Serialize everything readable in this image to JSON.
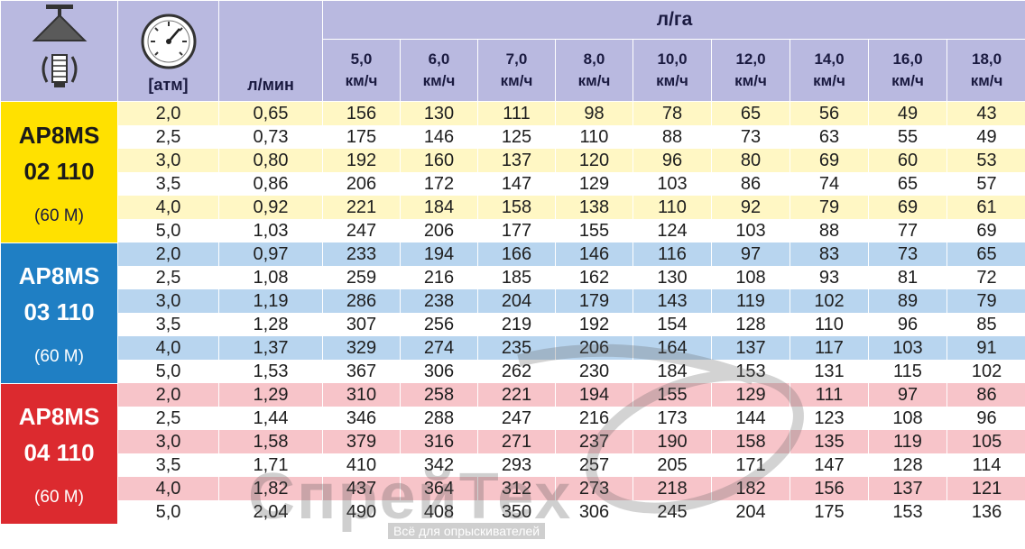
{
  "header": {
    "unit_top": "л/га",
    "pressure_label": "[атм]",
    "flow_label": "л/мин",
    "speeds": [
      {
        "value": "5,0",
        "unit": "км/ч"
      },
      {
        "value": "6,0",
        "unit": "км/ч"
      },
      {
        "value": "7,0",
        "unit": "км/ч"
      },
      {
        "value": "8,0",
        "unit": "км/ч"
      },
      {
        "value": "10,0",
        "unit": "км/ч"
      },
      {
        "value": "12,0",
        "unit": "км/ч"
      },
      {
        "value": "14,0",
        "unit": "км/ч"
      },
      {
        "value": "16,0",
        "unit": "км/ч"
      },
      {
        "value": "18,0",
        "unit": "км/ч"
      }
    ]
  },
  "groups": [
    {
      "model_line1": "AP8MS",
      "model_line2": "02 110",
      "model_sub": "(60 M)",
      "color": "#ffe100",
      "rows": [
        [
          "2,0",
          "0,65",
          "156",
          "130",
          "111",
          "98",
          "78",
          "65",
          "56",
          "49",
          "43"
        ],
        [
          "2,5",
          "0,73",
          "175",
          "146",
          "125",
          "110",
          "88",
          "73",
          "63",
          "55",
          "49"
        ],
        [
          "3,0",
          "0,80",
          "192",
          "160",
          "137",
          "120",
          "96",
          "80",
          "69",
          "60",
          "53"
        ],
        [
          "3,5",
          "0,86",
          "206",
          "172",
          "147",
          "129",
          "103",
          "86",
          "74",
          "65",
          "57"
        ],
        [
          "4,0",
          "0,92",
          "221",
          "184",
          "158",
          "138",
          "110",
          "92",
          "79",
          "69",
          "61"
        ],
        [
          "5,0",
          "1,03",
          "247",
          "206",
          "177",
          "155",
          "124",
          "103",
          "88",
          "77",
          "69"
        ]
      ]
    },
    {
      "model_line1": "AP8MS",
      "model_line2": "03 110",
      "model_sub": "(60 M)",
      "color": "#1f7fc4",
      "rows": [
        [
          "2,0",
          "0,97",
          "233",
          "194",
          "166",
          "146",
          "116",
          "97",
          "83",
          "73",
          "65"
        ],
        [
          "2,5",
          "1,08",
          "259",
          "216",
          "185",
          "162",
          "130",
          "108",
          "93",
          "81",
          "72"
        ],
        [
          "3,0",
          "1,19",
          "286",
          "238",
          "204",
          "179",
          "143",
          "119",
          "102",
          "89",
          "79"
        ],
        [
          "3,5",
          "1,28",
          "307",
          "256",
          "219",
          "192",
          "154",
          "128",
          "110",
          "96",
          "85"
        ],
        [
          "4,0",
          "1,37",
          "329",
          "274",
          "235",
          "206",
          "164",
          "137",
          "117",
          "103",
          "91"
        ],
        [
          "5,0",
          "1,53",
          "367",
          "306",
          "262",
          "230",
          "184",
          "153",
          "131",
          "115",
          "102"
        ]
      ]
    },
    {
      "model_line1": "AP8MS",
      "model_line2": "04 110",
      "model_sub": "(60 M)",
      "color": "#dc2a2f",
      "rows": [
        [
          "2,0",
          "1,29",
          "310",
          "258",
          "221",
          "194",
          "155",
          "129",
          "111",
          "97",
          "86"
        ],
        [
          "2,5",
          "1,44",
          "346",
          "288",
          "247",
          "216",
          "173",
          "144",
          "123",
          "108",
          "96"
        ],
        [
          "3,0",
          "1,58",
          "379",
          "316",
          "271",
          "237",
          "190",
          "158",
          "135",
          "119",
          "105"
        ],
        [
          "3,5",
          "1,71",
          "410",
          "342",
          "293",
          "257",
          "205",
          "171",
          "147",
          "128",
          "114"
        ],
        [
          "4,0",
          "1,82",
          "437",
          "364",
          "312",
          "273",
          "218",
          "182",
          "156",
          "137",
          "121"
        ],
        [
          "5,0",
          "2,04",
          "490",
          "408",
          "350",
          "306",
          "245",
          "204",
          "175",
          "153",
          "136"
        ]
      ]
    }
  ],
  "watermark": {
    "text": "СпрейТех",
    "subtext": "Всё для опрыскивателей"
  }
}
